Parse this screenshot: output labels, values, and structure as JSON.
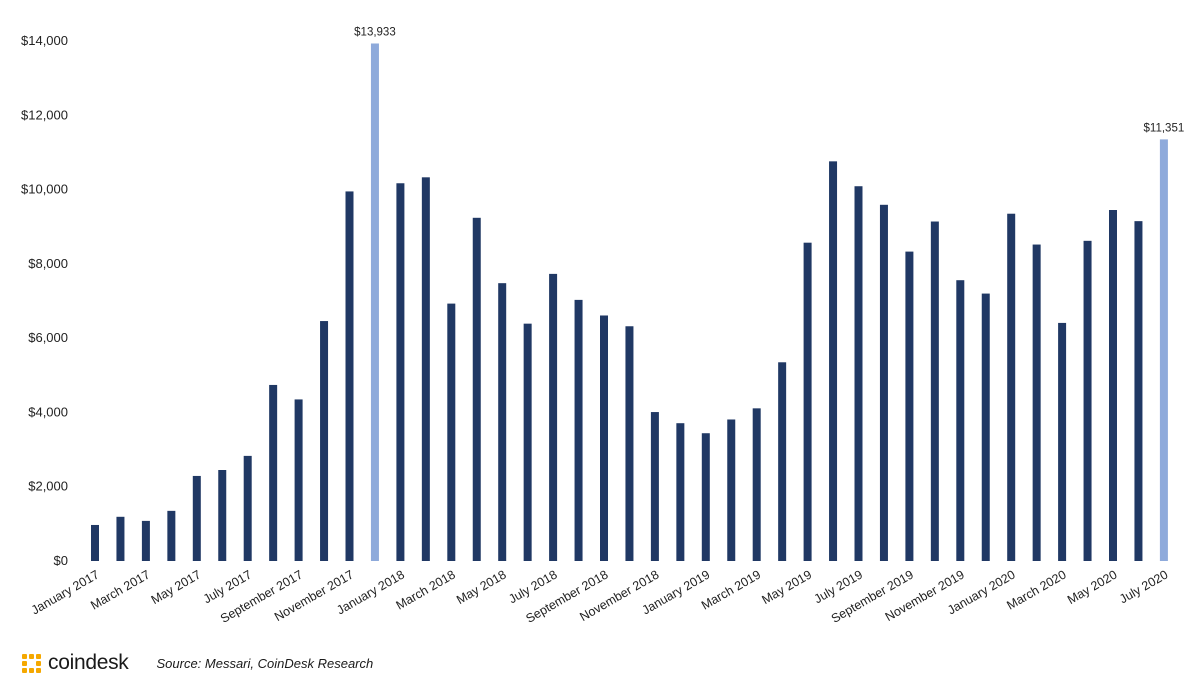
{
  "chart_data": {
    "type": "bar",
    "title": "",
    "xlabel": "",
    "ylabel": "",
    "ylim": [
      0,
      14000
    ],
    "y_ticks": [
      0,
      2000,
      4000,
      6000,
      8000,
      10000,
      12000,
      14000
    ],
    "y_tick_labels": [
      "$0",
      "$2,000",
      "$4,000",
      "$6,000",
      "$8,000",
      "$10,000",
      "$12,000",
      "$14,000"
    ],
    "grid": false,
    "categories": [
      "January 2017",
      "February 2017",
      "March 2017",
      "April 2017",
      "May 2017",
      "June 2017",
      "July 2017",
      "August 2017",
      "September 2017",
      "October 2017",
      "November 2017",
      "December 2017",
      "January 2018",
      "February 2018",
      "March 2018",
      "April 2018",
      "May 2018",
      "June 2018",
      "July 2018",
      "August 2018",
      "September 2018",
      "October 2018",
      "November 2018",
      "December 2018",
      "January 2019",
      "February 2019",
      "March 2019",
      "April 2019",
      "May 2019",
      "June 2019",
      "July 2019",
      "August 2019",
      "September 2019",
      "October 2019",
      "November 2019",
      "December 2019",
      "January 2020",
      "February 2020",
      "March 2020",
      "April 2020",
      "May 2020",
      "June 2020",
      "July 2020"
    ],
    "x_tick_labels": [
      "January 2017",
      "",
      "March 2017",
      "",
      "May 2017",
      "",
      "July 2017",
      "",
      "September 2017",
      "",
      "November 2017",
      "",
      "January 2018",
      "",
      "March 2018",
      "",
      "May 2018",
      "",
      "July 2018",
      "",
      "September 2018",
      "",
      "November 2018",
      "",
      "January 2019",
      "",
      "March 2019",
      "",
      "May 2019",
      "",
      "July 2019",
      "",
      "September 2019",
      "",
      "November 2019",
      "",
      "January 2020",
      "",
      "March 2020",
      "",
      "May 2020",
      "",
      "July 2020"
    ],
    "values": [
      970,
      1190,
      1080,
      1350,
      2290,
      2450,
      2830,
      4740,
      4350,
      6460,
      9950,
      13933,
      10170,
      10330,
      6930,
      9240,
      7480,
      6390,
      7730,
      7030,
      6610,
      6320,
      4010,
      3710,
      3440,
      3810,
      4110,
      5350,
      8570,
      10760,
      10090,
      9590,
      8330,
      9140,
      7560,
      7200,
      9350,
      8520,
      6410,
      8620,
      9450,
      9150,
      11351
    ],
    "highlight_color": "#8eaadb",
    "bar_color": "#203864",
    "highlighted_indices": [
      11,
      42
    ],
    "data_labels": [
      {
        "index": 11,
        "text": "$13,933"
      },
      {
        "index": 42,
        "text": "$11,351"
      }
    ]
  },
  "footer": {
    "brand": "coindesk",
    "logo_icon": "coindesk-logo-icon",
    "logo_color": "#f5a800",
    "source": "Source: Messari, CoinDesk Research"
  }
}
